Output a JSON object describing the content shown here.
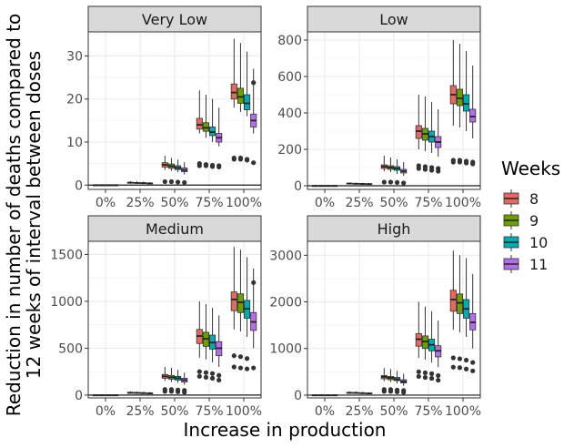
{
  "chart_data": {
    "type": "boxplot",
    "xlabel": "Increase in production",
    "ylabel_lines": [
      "Reduction in number of deaths compared to",
      "12 weeks of interval between doses"
    ],
    "categories": [
      "0%",
      "25%",
      "50%",
      "75%",
      "100%"
    ],
    "legend": {
      "title": "Weeks",
      "position": "right",
      "items": [
        {
          "label": "8",
          "color": "#F8766D"
        },
        {
          "label": "9",
          "color": "#7CAE00"
        },
        {
          "label": "10",
          "color": "#00BFC4"
        },
        {
          "label": "11",
          "color": "#C77CFF"
        }
      ]
    },
    "grid": true,
    "facets": [
      {
        "title": "Very Low",
        "ylim": [
          -1,
          35.6
        ],
        "yticks": [
          0,
          10,
          20,
          30
        ],
        "series": [
          {
            "name": "8",
            "boxes": [
              [
                0,
                0,
                0,
                0,
                0
              ],
              [
                0.3,
                0.45,
                0.55,
                0.65,
                0.9
              ],
              [
                3.5,
                4.2,
                4.7,
                5.2,
                6.8
              ],
              [
                12,
                13,
                14,
                15.5,
                22
              ],
              [
                18,
                20,
                21.5,
                23.5,
                34
              ]
            ],
            "outliers": [
              [],
              [],
              [
                0.8
              ],
              [
                5,
                4.5
              ],
              [
                6,
                6.3
              ]
            ]
          },
          {
            "name": "9",
            "boxes": [
              [
                0,
                0,
                0,
                0,
                0
              ],
              [
                0.3,
                0.45,
                0.5,
                0.6,
                0.85
              ],
              [
                3.3,
                3.9,
                4.4,
                4.9,
                6.3
              ],
              [
                11,
                12.5,
                13.3,
                14.5,
                21
              ],
              [
                17,
                19,
                20.5,
                22.5,
                33
              ]
            ],
            "outliers": [
              [],
              [],
              [
                0.8
              ],
              [
                4.8,
                4.5
              ],
              [
                6,
                6.3
              ]
            ]
          },
          {
            "name": "10",
            "boxes": [
              [
                0,
                0,
                0,
                0,
                0
              ],
              [
                0.25,
                0.4,
                0.45,
                0.55,
                0.8
              ],
              [
                3,
                3.6,
                4,
                4.5,
                5.9
              ],
              [
                10,
                11.5,
                12.3,
                13.5,
                20
              ],
              [
                16,
                17.5,
                19,
                21,
                31
              ]
            ],
            "outliers": [
              [],
              [],
              [
                0.7
              ],
              [
                4.6,
                4.3
              ],
              [
                5.8,
                6
              ]
            ]
          },
          {
            "name": "11",
            "boxes": [
              [
                0,
                0,
                0,
                0,
                0
              ],
              [
                0.2,
                0.35,
                0.4,
                0.5,
                0.7
              ],
              [
                2.5,
                3.1,
                3.5,
                4,
                5.3
              ],
              [
                9,
                10,
                11,
                12,
                18
              ],
              [
                12,
                13.5,
                15,
                16.5,
                27
              ]
            ],
            "outliers": [
              [],
              [],
              [
                0.6
              ],
              [
                4.5,
                4.2
              ],
              [
                5.2,
                23.8
              ]
            ]
          }
        ]
      },
      {
        "title": "Low",
        "ylim": [
          -20,
          845
        ],
        "yticks": [
          0,
          200,
          400,
          600,
          800
        ],
        "series": [
          {
            "name": "8",
            "boxes": [
              [
                0,
                0,
                0,
                0,
                0
              ],
              [
                8,
                10,
                12,
                14,
                18
              ],
              [
                80,
                95,
                105,
                115,
                165
              ],
              [
                200,
                260,
                300,
                330,
                500
              ],
              [
                330,
                450,
                500,
                550,
                800
              ]
            ],
            "outliers": [
              [],
              [],
              [
                20
              ],
              [
                110,
                95
              ],
              [
                140,
                130
              ]
            ]
          },
          {
            "name": "9",
            "boxes": [
              [
                0,
                0,
                0,
                0,
                0
              ],
              [
                7,
                9,
                11,
                13,
                17
              ],
              [
                75,
                90,
                100,
                110,
                155
              ],
              [
                190,
                250,
                285,
                315,
                490
              ],
              [
                320,
                440,
                480,
                530,
                780
              ]
            ],
            "outliers": [
              [],
              [],
              [
                20
              ],
              [
                105,
                90
              ],
              [
                140,
                130
              ]
            ]
          },
          {
            "name": "10",
            "boxes": [
              [
                0,
                0,
                0,
                0,
                0
              ],
              [
                6,
                8,
                10,
                12,
                16
              ],
              [
                65,
                85,
                95,
                105,
                145
              ],
              [
                180,
                240,
                270,
                300,
                460
              ],
              [
                300,
                410,
                450,
                500,
                740
              ]
            ],
            "outliers": [
              [],
              [],
              [
                18
              ],
              [
                100,
                85
              ],
              [
                135,
                125
              ]
            ]
          },
          {
            "name": "11",
            "boxes": [
              [
                0,
                0,
                0,
                0,
                0
              ],
              [
                5,
                7,
                9,
                11,
                15
              ],
              [
                55,
                70,
                80,
                90,
                130
              ],
              [
                160,
                210,
                240,
                270,
                420
              ],
              [
                260,
                350,
                380,
                420,
                660
              ]
            ],
            "outliers": [
              [],
              [],
              [
                15
              ],
              [
                95,
                80
              ],
              [
                130,
                120
              ]
            ]
          }
        ]
      },
      {
        "title": "Medium",
        "ylim": [
          -30,
          1640
        ],
        "yticks": [
          0,
          500,
          1000,
          1500
        ],
        "series": [
          {
            "name": "8",
            "boxes": [
              [
                0,
                0,
                0,
                0,
                0
              ],
              [
                15,
                20,
                25,
                30,
                40
              ],
              [
                150,
                180,
                200,
                220,
                300
              ],
              [
                400,
                550,
                630,
                700,
                1000
              ],
              [
                700,
                900,
                1020,
                1100,
                1580
              ]
            ],
            "outliers": [
              [],
              [],
              [
                40,
                60
              ],
              [
                250,
                200
              ],
              [
                420,
                300
              ]
            ]
          },
          {
            "name": "9",
            "boxes": [
              [
                0,
                0,
                0,
                0,
                0
              ],
              [
                14,
                19,
                23,
                28,
                38
              ],
              [
                140,
                170,
                190,
                210,
                290
              ],
              [
                380,
                520,
                600,
                670,
                970
              ],
              [
                680,
                880,
                990,
                1080,
                1550
              ]
            ],
            "outliers": [
              [],
              [],
              [
                40,
                60
              ],
              [
                240,
                190
              ],
              [
                410,
                290
              ]
            ]
          },
          {
            "name": "10",
            "boxes": [
              [
                0,
                0,
                0,
                0,
                0
              ],
              [
                12,
                17,
                21,
                26,
                35
              ],
              [
                130,
                160,
                180,
                200,
                270
              ],
              [
                350,
                490,
                560,
                640,
                930
              ],
              [
                620,
                820,
                920,
                1010,
                1470
              ]
            ],
            "outliers": [
              [],
              [],
              [
                35,
                55
              ],
              [
                230,
                180
              ],
              [
                390,
                280
              ]
            ]
          },
          {
            "name": "11",
            "boxes": [
              [
                0,
                0,
                0,
                0,
                0
              ],
              [
                10,
                15,
                19,
                23,
                32
              ],
              [
                110,
                140,
                160,
                180,
                240
              ],
              [
                300,
                420,
                500,
                570,
                850
              ],
              [
                500,
                690,
                780,
                880,
                1350
              ]
            ],
            "outliers": [
              [],
              [],
              [
                30,
                50
              ],
              [
                210,
                160
              ],
              [
                1200,
                290
              ]
            ]
          }
        ]
      },
      {
        "title": "High",
        "ylim": [
          -60,
          3300
        ],
        "yticks": [
          0,
          1000,
          2000,
          3000
        ],
        "series": [
          {
            "name": "8",
            "boxes": [
              [
                0,
                0,
                0,
                0,
                0
              ],
              [
                30,
                40,
                50,
                60,
                80
              ],
              [
                300,
                350,
                390,
                420,
                580
              ],
              [
                800,
                1050,
                1200,
                1320,
                2000
              ],
              [
                1400,
                1800,
                2050,
                2250,
                3100
              ]
            ],
            "outliers": [
              [],
              [],
              [
                80,
                120
              ],
              [
                500,
                400
              ],
              [
                800,
                600
              ]
            ]
          },
          {
            "name": "9",
            "boxes": [
              [
                0,
                0,
                0,
                0,
                0
              ],
              [
                28,
                38,
                47,
                56,
                76
              ],
              [
                280,
                330,
                370,
                400,
                560
              ],
              [
                760,
                1000,
                1150,
                1270,
                1900
              ],
              [
                1350,
                1750,
                1980,
                2170,
                3000
              ]
            ],
            "outliers": [
              [],
              [],
              [
                80,
                120
              ],
              [
                480,
                380
              ],
              [
                780,
                590
              ]
            ]
          },
          {
            "name": "10",
            "boxes": [
              [
                0,
                0,
                0,
                0,
                0
              ],
              [
                25,
                34,
                42,
                50,
                70
              ],
              [
                250,
                310,
                340,
                380,
                520
              ],
              [
                700,
                950,
                1080,
                1200,
                1800
              ],
              [
                1250,
                1650,
                1850,
                2050,
                2940
              ]
            ],
            "outliers": [
              [],
              [],
              [
                70,
                110
              ],
              [
                460,
                360
              ],
              [
                750,
                560
              ]
            ]
          },
          {
            "name": "11",
            "boxes": [
              [
                0,
                0,
                0,
                0,
                0
              ],
              [
                20,
                28,
                36,
                44,
                62
              ],
              [
                200,
                260,
                290,
                330,
                460
              ],
              [
                600,
                820,
                950,
                1060,
                1600
              ],
              [
                1000,
                1400,
                1560,
                1750,
                2600
              ]
            ],
            "outliers": [
              [],
              [],
              [
                60,
                100
              ],
              [
                420,
                320
              ],
              [
                700,
                520
              ]
            ]
          }
        ]
      }
    ]
  }
}
